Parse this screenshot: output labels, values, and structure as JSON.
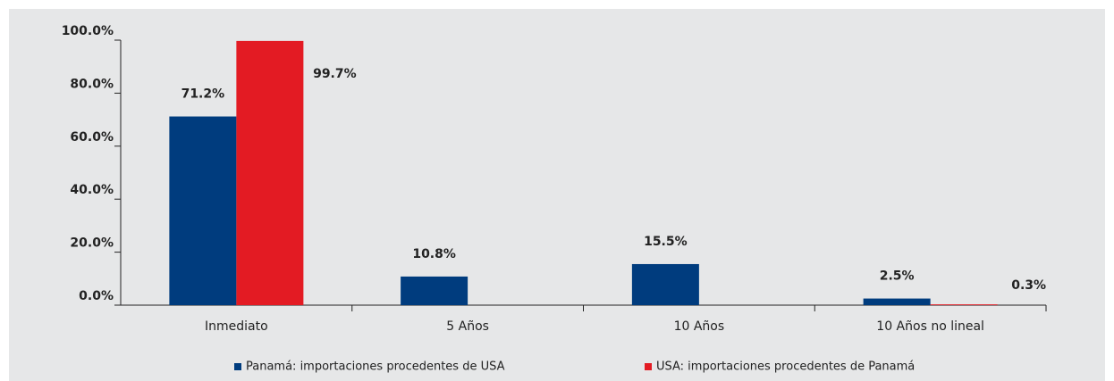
{
  "chart_data": {
    "type": "bar",
    "categories": [
      "Inmediato",
      "5 Años",
      "10 Años",
      "10 Años no lineal"
    ],
    "series": [
      {
        "name": "Panamá: importaciones procedentes de USA",
        "color": "#003c7e",
        "values": [
          71.2,
          10.8,
          15.5,
          2.5
        ],
        "value_labels": [
          "71.2%",
          "10.8%",
          "15.5%",
          "2.5%"
        ]
      },
      {
        "name": "USA: importaciones procedentes de Panamá",
        "color": "#e31b23",
        "values": [
          99.7,
          null,
          null,
          0.3
        ],
        "value_labels": [
          "99.7%",
          null,
          null,
          "0.3%"
        ]
      }
    ],
    "ylim": [
      0,
      100
    ],
    "yticks": [
      {
        "value": 0,
        "label": "0.0%"
      },
      {
        "value": 20,
        "label": "20.0%"
      },
      {
        "value": 40,
        "label": "40.0%"
      },
      {
        "value": 60,
        "label": "60.0%"
      },
      {
        "value": 80,
        "label": "80.0%"
      },
      {
        "value": 100,
        "label": "100.0%"
      }
    ],
    "legend": "bottom"
  }
}
